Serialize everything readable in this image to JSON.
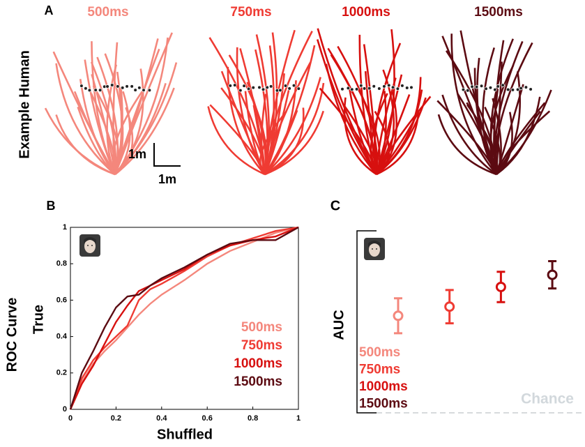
{
  "chart_data": [
    {
      "type": "trajectories",
      "panel_label": "A",
      "ylabel": "Example Human",
      "categories": [
        "500ms",
        "750ms",
        "1000ms",
        "1500ms"
      ],
      "colors": [
        "#f4877c",
        "#ef3b33",
        "#d7100f",
        "#5c0b12"
      ],
      "scale_y_label": "1m",
      "scale_x_label": "1m"
    },
    {
      "type": "line",
      "panel_label": "B",
      "title": "ROC Curve",
      "xlabel": "Shuffled",
      "ylabel": "True",
      "x": [
        0,
        0.05,
        0.1,
        0.15,
        0.2,
        0.25,
        0.3,
        0.35,
        0.4,
        0.5,
        0.6,
        0.7,
        0.8,
        0.9,
        1
      ],
      "series": [
        {
          "name": "500ms",
          "color": "#f4877c",
          "values": [
            0,
            0.15,
            0.25,
            0.32,
            0.38,
            0.45,
            0.52,
            0.58,
            0.63,
            0.71,
            0.8,
            0.87,
            0.92,
            0.97,
            1
          ]
        },
        {
          "name": "750ms",
          "color": "#ef3b33",
          "values": [
            0,
            0.17,
            0.27,
            0.34,
            0.4,
            0.46,
            0.6,
            0.66,
            0.69,
            0.76,
            0.84,
            0.9,
            0.94,
            0.98,
            1
          ]
        },
        {
          "name": "1000ms",
          "color": "#d7100f",
          "values": [
            0,
            0.14,
            0.24,
            0.36,
            0.48,
            0.57,
            0.65,
            0.68,
            0.71,
            0.77,
            0.85,
            0.9,
            0.93,
            0.95,
            1
          ]
        },
        {
          "name": "1500ms",
          "color": "#5c0b12",
          "values": [
            0,
            0.2,
            0.32,
            0.45,
            0.56,
            0.62,
            0.63,
            0.68,
            0.72,
            0.78,
            0.85,
            0.91,
            0.93,
            0.93,
            1
          ]
        }
      ],
      "xlim": [
        0,
        1
      ],
      "ylim": [
        0,
        1
      ],
      "xticks": [
        0,
        0.2,
        0.4,
        0.6,
        0.8,
        1
      ],
      "yticks": [
        0,
        0.2,
        0.4,
        0.6,
        0.8,
        1
      ]
    },
    {
      "type": "errorbar",
      "panel_label": "C",
      "ylabel": "AUC",
      "series": [
        {
          "name": "500ms",
          "color": "#f4877c",
          "values": [
            0.564
          ],
          "errors": [
            0.0115
          ]
        },
        {
          "name": "750ms",
          "color": "#ef3b33",
          "values": [
            0.57
          ],
          "errors": [
            0.011
          ]
        },
        {
          "name": "1000ms",
          "color": "#d7100f",
          "values": [
            0.583
          ],
          "errors": [
            0.01
          ]
        },
        {
          "name": "1500ms",
          "color": "#5c0b12",
          "values": [
            0.591
          ],
          "errors": [
            0.009
          ]
        }
      ],
      "ylim": [
        0.5,
        0.62
      ],
      "chance": 0.5,
      "chance_label": "Chance"
    }
  ]
}
